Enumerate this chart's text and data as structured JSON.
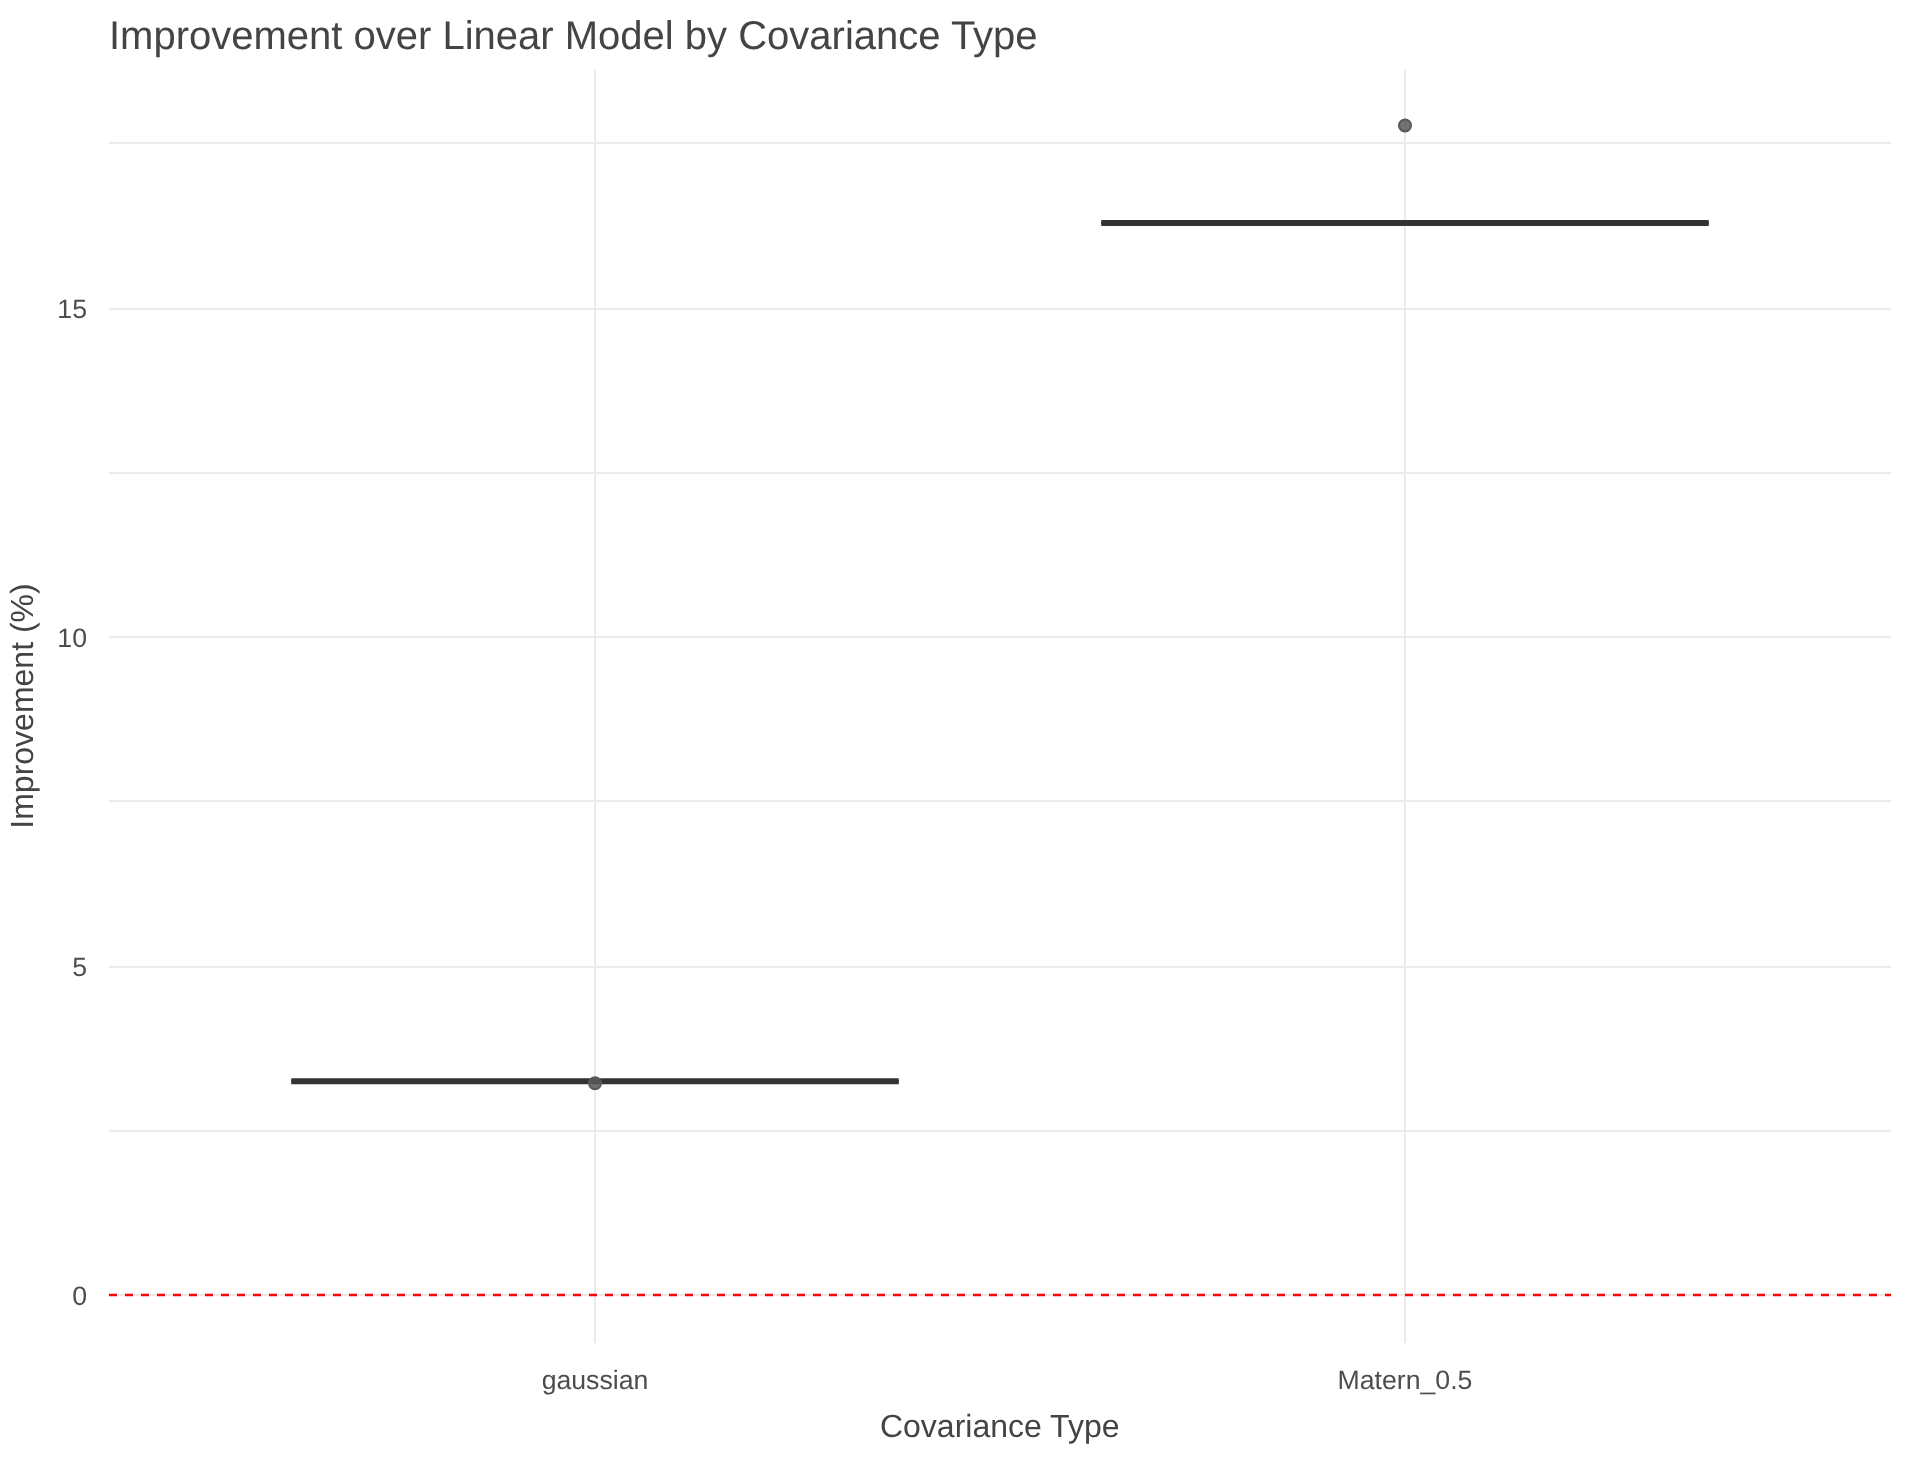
{
  "chart_data": {
    "type": "box",
    "title": "Improvement over Linear Model by Covariance Type",
    "xlabel": "Covariance Type",
    "ylabel": "Improvement (%)",
    "categories": [
      "gaussian",
      "Matern_0.5"
    ],
    "series": [
      {
        "type": "box",
        "color": "#333333",
        "boxes": [
          {
            "low": 3.25,
            "q1": 3.25,
            "median": 3.25,
            "q3": 3.25,
            "high": 3.25
          },
          {
            "low": 16.3,
            "q1": 16.3,
            "median": 16.3,
            "q3": 16.3,
            "high": 16.3
          }
        ]
      },
      {
        "type": "scatter",
        "color": "#595959",
        "x": [
          "gaussian",
          "Matern_0.5"
        ],
        "values": [
          3.22,
          17.78
        ]
      }
    ],
    "ylim": [
      -0.73,
      18.64
    ],
    "yticks": [
      0,
      {
        "value": 2.5,
        "label": null
      },
      5,
      {
        "value": 7.5,
        "label": null
      },
      10,
      {
        "value": 12.5,
        "label": null
      },
      15,
      {
        "value": 17.5,
        "label": null
      }
    ],
    "ref_lines": [
      {
        "axis": "y",
        "value": 0,
        "color": "#ff0000",
        "line_style": "dashed"
      }
    ],
    "grid": true,
    "marker": "circle",
    "legend": false
  }
}
